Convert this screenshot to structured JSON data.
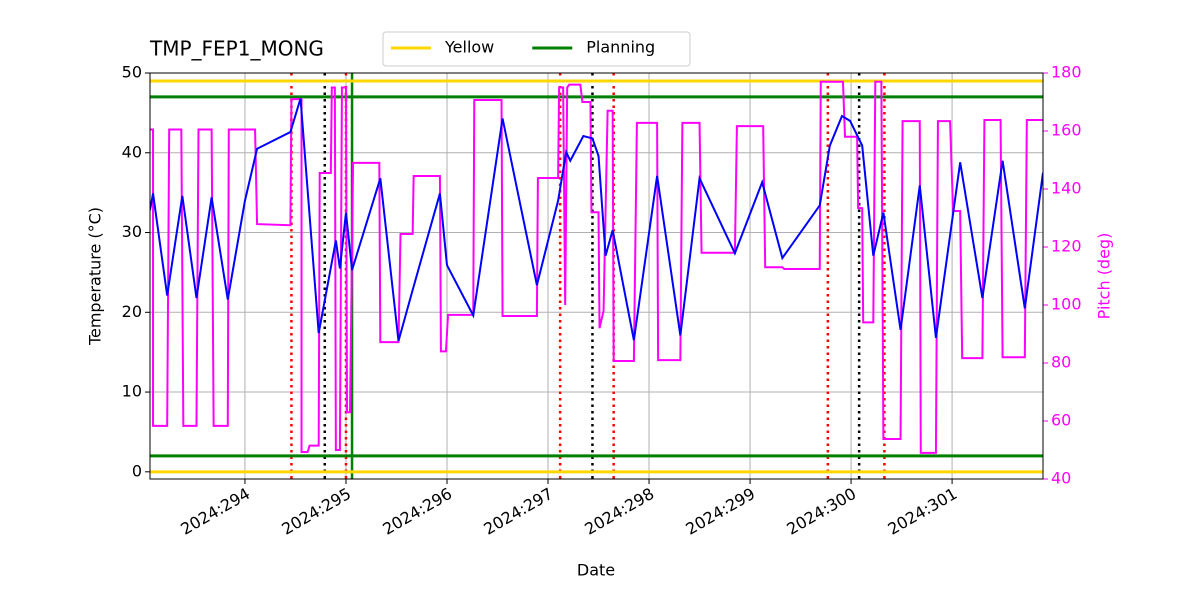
{
  "chart_data": {
    "type": "line",
    "title": "TMP_FEP1_MONG",
    "x_label": "Date",
    "y_label": "Temperature (°C)",
    "y2_label": "Pitch (deg)",
    "xlim": [
      293.06,
      301.9
    ],
    "ylim": [
      -0.9,
      50
    ],
    "y2lim": [
      40,
      180
    ],
    "xticks": [
      {
        "value": 294,
        "label": "2024:294"
      },
      {
        "value": 295,
        "label": "2024:295"
      },
      {
        "value": 296,
        "label": "2024:296"
      },
      {
        "value": 297,
        "label": "2024:297"
      },
      {
        "value": 298,
        "label": "2024:298"
      },
      {
        "value": 299,
        "label": "2024:299"
      },
      {
        "value": 300,
        "label": "2024:300"
      },
      {
        "value": 301,
        "label": "2024:301"
      }
    ],
    "yticks": [
      0,
      10,
      20,
      30,
      40,
      50
    ],
    "y2ticks": [
      40,
      60,
      80,
      100,
      120,
      140,
      160,
      180
    ],
    "grid": true,
    "legend": "upper center",
    "hlines": [
      {
        "name": "Yellow",
        "color": "#ffd700",
        "values": [
          0,
          49
        ]
      },
      {
        "name": "Planning",
        "color": "#008000",
        "values": [
          2,
          47
        ]
      }
    ],
    "vlines": [
      {
        "color": "#ff0000",
        "style": "dotted",
        "values": [
          294.46,
          295.0,
          297.12,
          297.65,
          299.77,
          300.33
        ]
      },
      {
        "color": "#000000",
        "style": "dotted",
        "values": [
          294.79,
          297.44,
          300.08
        ]
      },
      {
        "color": "#008000",
        "style": "solid",
        "values": [
          295.06
        ]
      }
    ],
    "series": [
      {
        "color": "#ff00ff",
        "axis": "y2",
        "x": [
          293.06,
          293.09,
          293.09,
          293.23,
          293.25,
          293.37,
          293.39,
          293.52,
          293.54,
          293.67,
          293.69,
          293.83,
          293.84,
          294.1,
          294.12,
          294.45,
          294.46,
          294.56,
          294.56,
          294.62,
          294.64,
          294.73,
          294.74,
          294.85,
          294.86,
          294.89,
          294.9,
          294.94,
          294.96,
          295.0,
          295.01,
          295.04,
          295.07,
          295.33,
          295.34,
          295.52,
          295.54,
          295.66,
          295.67,
          295.93,
          295.94,
          295.99,
          296.01,
          296.26,
          296.27,
          296.54,
          296.55,
          296.89,
          296.9,
          297.1,
          297.11,
          297.15,
          297.17,
          297.19,
          297.21,
          297.32,
          297.34,
          297.42,
          297.43,
          297.5,
          297.51,
          297.55,
          297.59,
          297.64,
          297.65,
          297.85,
          297.88,
          298.08,
          298.09,
          298.31,
          298.33,
          298.5,
          298.52,
          298.85,
          298.87,
          299.13,
          299.15,
          299.32,
          299.34,
          299.69,
          299.7,
          299.92,
          299.94,
          300.06,
          300.07,
          300.11,
          300.12,
          300.22,
          300.24,
          300.3,
          300.32,
          300.49,
          300.51,
          300.68,
          300.69,
          300.84,
          300.86,
          300.98,
          301.01,
          301.08,
          301.1,
          301.3,
          301.32,
          301.48,
          301.5,
          301.72,
          301.74,
          301.9
        ],
        "values": [
          160.5,
          160.5,
          58.3,
          58.3,
          160.5,
          160.5,
          58.3,
          58.3,
          160.5,
          160.5,
          58.3,
          58.3,
          160.5,
          160.5,
          127.9,
          127.5,
          171,
          171,
          49.3,
          49.3,
          51.5,
          51.5,
          145.5,
          145.5,
          175,
          175,
          50,
          50,
          175,
          175,
          63,
          63,
          149,
          149,
          87.2,
          87.2,
          124.5,
          124.5,
          144.5,
          144.5,
          84,
          84,
          96.6,
          96.6,
          170.7,
          170.7,
          96.2,
          96.2,
          143.8,
          143.8,
          175,
          175,
          100,
          175,
          176,
          176,
          170,
          170,
          132,
          132,
          92,
          98,
          167,
          167,
          80.7,
          80.7,
          162.8,
          162.8,
          81,
          81,
          162.8,
          162.8,
          118,
          118,
          161.7,
          161.7,
          113,
          113,
          112.4,
          112.4,
          177,
          177,
          158,
          158,
          133.4,
          133.4,
          94,
          94,
          177,
          177,
          53.8,
          53.8,
          163.4,
          163.4,
          49,
          49,
          163.4,
          163.4,
          132.4,
          132.4,
          81.7,
          81.7,
          163.8,
          163.8,
          82,
          82,
          163.8,
          163.8
        ]
      },
      {
        "color": "#0000ff",
        "x": [
          293.06,
          293.09,
          293.23,
          293.38,
          293.52,
          293.67,
          293.83,
          294.0,
          294.12,
          294.45,
          294.55,
          294.73,
          294.9,
          294.94,
          295.0,
          295.06,
          295.34,
          295.52,
          295.66,
          295.93,
          296.0,
          296.26,
          296.55,
          296.89,
          297.1,
          297.18,
          297.22,
          297.35,
          297.44,
          297.5,
          297.57,
          297.64,
          297.85,
          298.08,
          298.31,
          298.5,
          298.85,
          299.12,
          299.32,
          299.69,
          299.79,
          299.91,
          299.99,
          300.11,
          300.22,
          300.32,
          300.49,
          300.68,
          300.84,
          301.08,
          301.3,
          301.5,
          301.72,
          301.9
        ],
        "values": [
          32.8,
          34.9,
          22.1,
          34.6,
          21.8,
          34.4,
          21.6,
          34,
          40.5,
          42.6,
          46.8,
          17.4,
          29,
          25.5,
          32.5,
          25.3,
          36.8,
          16.4,
          22.8,
          34.9,
          25.9,
          19.6,
          44.3,
          23.4,
          34,
          40.1,
          39,
          42.1,
          41.8,
          39.6,
          27.1,
          30.3,
          16.5,
          37.1,
          17.1,
          36.8,
          27.4,
          36.3,
          26.8,
          33.4,
          40.9,
          44.6,
          44,
          40.9,
          27.1,
          32.5,
          17.8,
          35.9,
          16.8,
          38.8,
          21.8,
          39,
          20.5,
          37.5
        ]
      }
    ]
  }
}
